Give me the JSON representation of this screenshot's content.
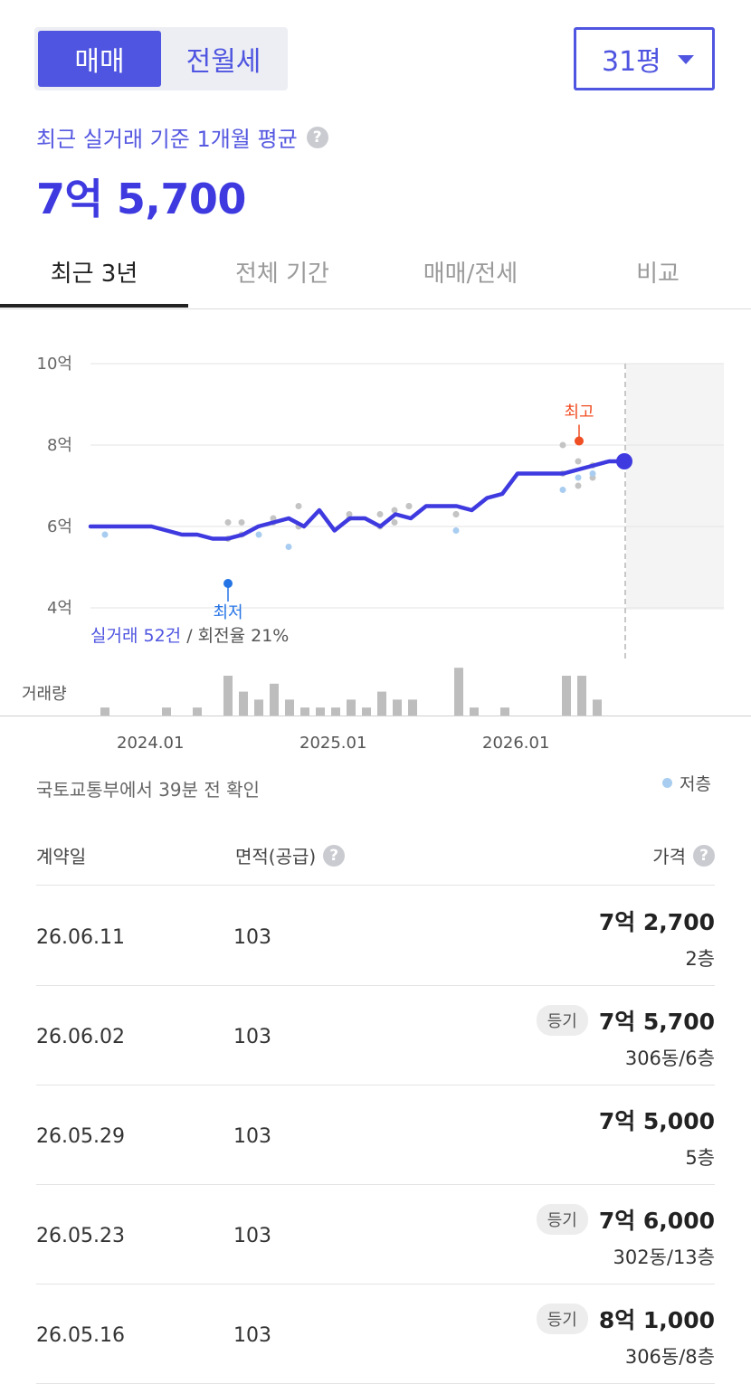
{
  "deal_toggle": {
    "active": "매매",
    "inactive": "전월세"
  },
  "area_select": {
    "value": "31평"
  },
  "summary": {
    "label": "최근 실거래 기준 1개월 평균",
    "price": "7억 5,700"
  },
  "period_tabs": [
    {
      "label": "최근 3년",
      "active": true
    },
    {
      "label": "전체 기간",
      "active": false
    },
    {
      "label": "매매/전세",
      "active": false
    },
    {
      "label": "비교",
      "active": false
    }
  ],
  "chart_data": {
    "type": "line",
    "y_unit": "억",
    "ylim": [
      4,
      10
    ],
    "y_ticks": [
      "10억",
      "8억",
      "6억",
      "4억"
    ],
    "x_ticks": [
      "2024.01",
      "2025.01",
      "2026.01"
    ],
    "trend_line": {
      "x": [
        "2023.07",
        "2023.08",
        "2023.09",
        "2023.10",
        "2023.11",
        "2023.12",
        "2024.01",
        "2024.02",
        "2024.03",
        "2024.04",
        "2024.05",
        "2024.06",
        "2024.07",
        "2024.08",
        "2024.09",
        "2024.10",
        "2024.11",
        "2024.12",
        "2025.01",
        "2025.02",
        "2025.03",
        "2025.04",
        "2025.05",
        "2025.06",
        "2025.07",
        "2025.08",
        "2025.09",
        "2025.10",
        "2025.11",
        "2025.12",
        "2026.01",
        "2026.02",
        "2026.03",
        "2026.04",
        "2026.05",
        "2026.06"
      ],
      "values": [
        6.0,
        6.0,
        6.0,
        6.0,
        6.0,
        5.9,
        5.8,
        5.8,
        5.7,
        5.7,
        5.8,
        6.0,
        6.1,
        6.2,
        6.0,
        6.4,
        5.9,
        6.2,
        6.2,
        6.0,
        6.3,
        6.2,
        6.5,
        6.5,
        6.5,
        6.4,
        6.7,
        6.8,
        7.3,
        7.3,
        7.3,
        7.3,
        7.4,
        7.5,
        7.6,
        7.6
      ]
    },
    "current_value": 7.6,
    "markers": {
      "max_label": "최고",
      "min_label": "최저",
      "max_value": 8.1,
      "min_value": 4.6
    },
    "trades_gray": [
      [
        6.1,
        5.7
      ],
      [
        6.1,
        5.8
      ],
      [
        6.1,
        6.2
      ],
      [
        6.0,
        6.5
      ],
      [
        6.2,
        6.3
      ],
      [
        6.3,
        6.0
      ],
      [
        6.4,
        6.1
      ],
      [
        6.5,
        6.5
      ],
      [
        6.3,
        6.3
      ],
      [
        8.0,
        7.3
      ],
      [
        7.6,
        7.0
      ],
      [
        7.5,
        7.2
      ]
    ],
    "trades_low_floor": [
      5.8,
      5.8,
      5.5,
      5.9,
      6.9,
      7.2,
      7.3
    ],
    "volume": {
      "label": "거래량",
      "bars": [
        2,
        0,
        0,
        0,
        2,
        0,
        2,
        0,
        10,
        6,
        4,
        8,
        4,
        2,
        2,
        2,
        4,
        2,
        6,
        4,
        4,
        0,
        0,
        12,
        2,
        0,
        2,
        0,
        0,
        0,
        10,
        10,
        4
      ]
    },
    "legend": "저층"
  },
  "chart_summary": {
    "trades": "실거래 52건",
    "turnover": "/ 회전율 21%"
  },
  "source_note": "국토교통부에서 39분 전 확인",
  "table": {
    "headers": {
      "date": "계약일",
      "area": "면적(공급)",
      "price": "가격"
    },
    "rows": [
      {
        "date": "26.06.11",
        "area": "103",
        "badge": "",
        "price": "7억 2,700",
        "floor": "2층"
      },
      {
        "date": "26.06.02",
        "area": "103",
        "badge": "등기",
        "price": "7억 5,700",
        "floor": "306동/6층"
      },
      {
        "date": "26.05.29",
        "area": "103",
        "badge": "",
        "price": "7억 5,000",
        "floor": "5층"
      },
      {
        "date": "26.05.23",
        "area": "103",
        "badge": "등기",
        "price": "7억 6,000",
        "floor": "302동/13층"
      },
      {
        "date": "26.05.16",
        "area": "103",
        "badge": "등기",
        "price": "8억 1,000",
        "floor": "306동/8층"
      }
    ]
  },
  "colors": {
    "accent": "#4f55e0",
    "line": "#3e3ae0",
    "max": "#f04e23",
    "min": "#2574e6",
    "low_floor": "#a9cdf0",
    "gray_dot": "#c4c4c4",
    "bar": "#bdbdbd"
  }
}
